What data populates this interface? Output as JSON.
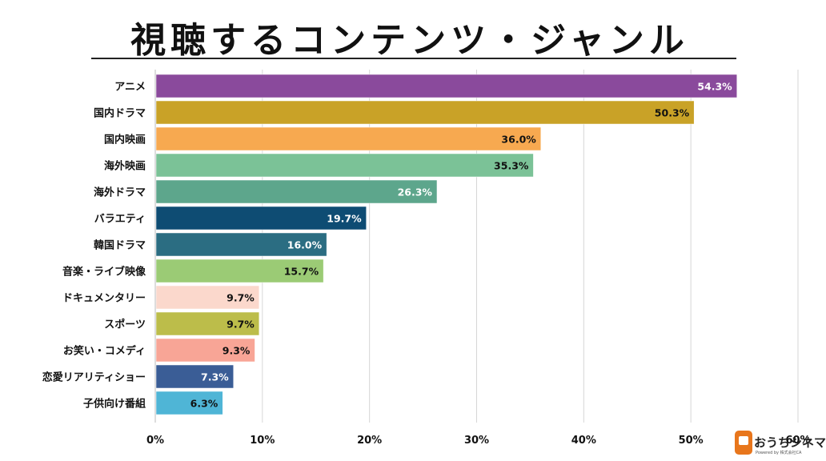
{
  "chart_data": {
    "type": "bar",
    "orientation": "horizontal",
    "title": "視聴するコンテンツ・ジャンル",
    "categories": [
      "アニメ",
      "国内ドラマ",
      "国内映画",
      "海外映画",
      "海外ドラマ",
      "バラエティ",
      "韓国ドラマ",
      "音楽・ライブ映像",
      "ドキュメンタリー",
      "スポーツ",
      "お笑い・コメディ",
      "恋愛リアリティショー",
      "子供向け番組"
    ],
    "values": [
      54.3,
      50.3,
      36.0,
      35.3,
      26.3,
      19.7,
      16.0,
      15.7,
      9.7,
      9.7,
      9.3,
      7.3,
      6.3
    ],
    "value_labels": [
      "54.3%",
      "50.3%",
      "36.0%",
      "35.3%",
      "26.3%",
      "19.7%",
      "16.0%",
      "15.7%",
      "9.7%",
      "9.7%",
      "9.3%",
      "7.3%",
      "6.3%"
    ],
    "colors": [
      "#8a4a9c",
      "#c9a227",
      "#f7a950",
      "#7bc297",
      "#5da68c",
      "#0e4c73",
      "#2b6d82",
      "#9bcb75",
      "#fbd8cc",
      "#bcbd4a",
      "#f8a596",
      "#3a5d96",
      "#4fb5d6"
    ],
    "label_colors": [
      "#ffffff",
      "#111111",
      "#111111",
      "#111111",
      "#ffffff",
      "#ffffff",
      "#ffffff",
      "#111111",
      "#111111",
      "#111111",
      "#111111",
      "#ffffff",
      "#111111"
    ],
    "xlim": [
      0,
      60
    ],
    "xticks": [
      "0%",
      "10%",
      "20%",
      "30%",
      "40%",
      "50%",
      "60%"
    ],
    "xlabel": "",
    "ylabel": "",
    "grid": true,
    "legend": "none"
  },
  "logo": {
    "text": "おうちシネマ",
    "subtext": "Powered by 株式会社CA"
  }
}
